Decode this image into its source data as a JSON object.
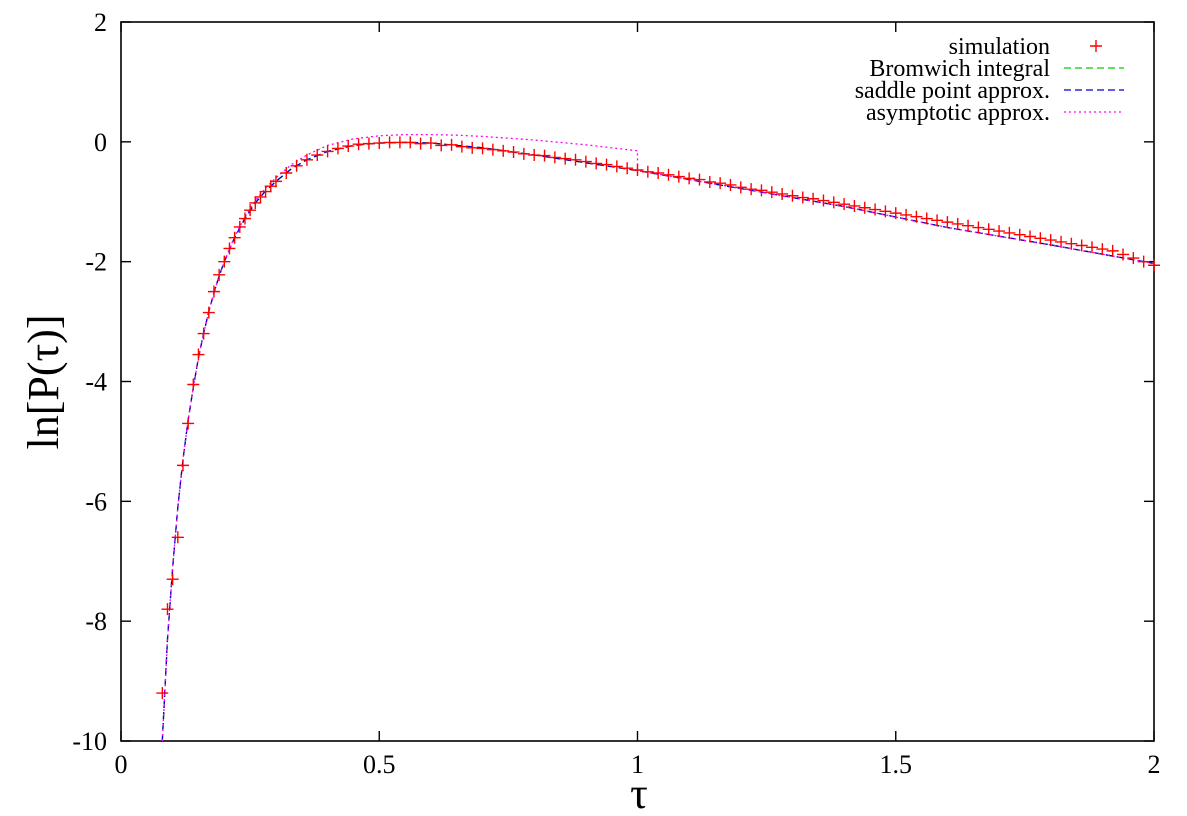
{
  "chart_data": {
    "type": "line",
    "title": "",
    "xlabel": "τ",
    "ylabel": "ln[P(τ)]",
    "xlim": [
      0,
      2
    ],
    "ylim": [
      -10,
      2
    ],
    "xticks": [
      "0",
      "0.5",
      "1",
      "1.5",
      "2"
    ],
    "xtick_values": [
      0,
      0.5,
      1,
      1.5,
      2
    ],
    "yticks": [
      "2",
      "0",
      "-2",
      "-4",
      "-6",
      "-8",
      "-10"
    ],
    "ytick_values": [
      2,
      0,
      -2,
      -4,
      -6,
      -8,
      -10
    ],
    "grid": false,
    "legend_position": "top-right",
    "series": [
      {
        "name": "simulation",
        "style": "markers-plus",
        "color": "#ff0000",
        "x": [
          0.08,
          0.09,
          0.1,
          0.11,
          0.12,
          0.13,
          0.14,
          0.15,
          0.16,
          0.17,
          0.18,
          0.19,
          0.2,
          0.21,
          0.22,
          0.23,
          0.24,
          0.25,
          0.26,
          0.27,
          0.28,
          0.29,
          0.3,
          0.32,
          0.34,
          0.36,
          0.38,
          0.4,
          0.42,
          0.44,
          0.46,
          0.48,
          0.5,
          0.52,
          0.54,
          0.56,
          0.58,
          0.6,
          0.62,
          0.64,
          0.66,
          0.68,
          0.7,
          0.72,
          0.74,
          0.76,
          0.78,
          0.8,
          0.82,
          0.84,
          0.86,
          0.88,
          0.9,
          0.92,
          0.94,
          0.96,
          0.98,
          1.0,
          1.02,
          1.04,
          1.06,
          1.08,
          1.1,
          1.12,
          1.14,
          1.16,
          1.18,
          1.2,
          1.22,
          1.24,
          1.26,
          1.28,
          1.3,
          1.32,
          1.34,
          1.36,
          1.38,
          1.4,
          1.42,
          1.44,
          1.46,
          1.48,
          1.5,
          1.52,
          1.54,
          1.56,
          1.58,
          1.6,
          1.62,
          1.64,
          1.66,
          1.68,
          1.7,
          1.72,
          1.74,
          1.76,
          1.78,
          1.8,
          1.82,
          1.84,
          1.86,
          1.88,
          1.9,
          1.92,
          1.94,
          1.96,
          1.98,
          2.0
        ],
        "y": [
          -9.2,
          -7.8,
          -7.3,
          -6.6,
          -5.4,
          -4.7,
          -4.05,
          -3.55,
          -3.2,
          -2.85,
          -2.5,
          -2.22,
          -2.0,
          -1.78,
          -1.6,
          -1.42,
          -1.28,
          -1.14,
          -1.02,
          -0.92,
          -0.83,
          -0.74,
          -0.66,
          -0.52,
          -0.4,
          -0.3,
          -0.22,
          -0.16,
          -0.11,
          -0.07,
          -0.04,
          -0.03,
          -0.02,
          -0.01,
          -0.01,
          -0.01,
          -0.03,
          -0.02,
          -0.06,
          -0.05,
          -0.08,
          -0.1,
          -0.11,
          -0.13,
          -0.15,
          -0.17,
          -0.2,
          -0.22,
          -0.23,
          -0.26,
          -0.28,
          -0.3,
          -0.33,
          -0.36,
          -0.38,
          -0.41,
          -0.44,
          -0.47,
          -0.5,
          -0.52,
          -0.55,
          -0.58,
          -0.61,
          -0.63,
          -0.67,
          -0.69,
          -0.72,
          -0.76,
          -0.79,
          -0.81,
          -0.84,
          -0.87,
          -0.9,
          -0.93,
          -0.95,
          -0.98,
          -1.01,
          -1.04,
          -1.07,
          -1.1,
          -1.13,
          -1.16,
          -1.19,
          -1.22,
          -1.25,
          -1.28,
          -1.31,
          -1.34,
          -1.37,
          -1.4,
          -1.43,
          -1.46,
          -1.49,
          -1.52,
          -1.55,
          -1.58,
          -1.61,
          -1.64,
          -1.67,
          -1.7,
          -1.73,
          -1.76,
          -1.79,
          -1.82,
          -1.88,
          -1.94,
          -2.0,
          -2.06
        ]
      },
      {
        "name": "Bromwich integral",
        "style": "dashed",
        "color": "#00cc00",
        "x": [
          0.08,
          0.09,
          0.1,
          0.11,
          0.12,
          0.13,
          0.14,
          0.15,
          0.16,
          0.17,
          0.18,
          0.19,
          0.2,
          0.22,
          0.24,
          0.26,
          0.28,
          0.3,
          0.33,
          0.36,
          0.4,
          0.45,
          0.5,
          0.55,
          0.6,
          0.7,
          0.8,
          0.9,
          1.0,
          1.2,
          1.4,
          1.6,
          1.8,
          2.0
        ],
        "y": [
          -10.0,
          -8.3,
          -7.1,
          -6.1,
          -5.3,
          -4.65,
          -4.1,
          -3.6,
          -3.2,
          -2.83,
          -2.52,
          -2.24,
          -2.0,
          -1.6,
          -1.28,
          -1.02,
          -0.82,
          -0.66,
          -0.45,
          -0.3,
          -0.16,
          -0.06,
          -0.02,
          -0.01,
          -0.02,
          -0.1,
          -0.22,
          -0.35,
          -0.48,
          -0.78,
          -1.08,
          -1.43,
          -1.72,
          -2.03
        ]
      },
      {
        "name": "saddle point approx.",
        "style": "dashed",
        "color": "#0000cc",
        "x": [
          0.08,
          0.09,
          0.1,
          0.11,
          0.12,
          0.13,
          0.14,
          0.15,
          0.16,
          0.17,
          0.18,
          0.19,
          0.2,
          0.22,
          0.24,
          0.26,
          0.28,
          0.3,
          0.33,
          0.36,
          0.4,
          0.45,
          0.5,
          0.55,
          0.6,
          0.7,
          0.8,
          0.9,
          1.0,
          1.2,
          1.4,
          1.6,
          1.8,
          2.0
        ],
        "y": [
          -10.0,
          -8.3,
          -7.1,
          -6.1,
          -5.3,
          -4.65,
          -4.1,
          -3.6,
          -3.2,
          -2.83,
          -2.52,
          -2.24,
          -2.0,
          -1.6,
          -1.28,
          -1.02,
          -0.82,
          -0.66,
          -0.45,
          -0.3,
          -0.16,
          -0.06,
          -0.02,
          -0.01,
          -0.02,
          -0.1,
          -0.22,
          -0.35,
          -0.48,
          -0.78,
          -1.08,
          -1.43,
          -1.72,
          -2.03
        ]
      },
      {
        "name": "asymptotic approx.",
        "style": "dotted",
        "color": "#ff00ff",
        "x": [
          0.08,
          0.09,
          0.1,
          0.11,
          0.12,
          0.13,
          0.14,
          0.15,
          0.16,
          0.17,
          0.18,
          0.19,
          0.2,
          0.22,
          0.24,
          0.26,
          0.28,
          0.3,
          0.33,
          0.36,
          0.4,
          0.45,
          0.5,
          0.55,
          0.6,
          0.65,
          0.7,
          0.8,
          0.9,
          1.0,
          1.0,
          1.2,
          1.4,
          1.6,
          1.8,
          2.0
        ],
        "y": [
          -10.0,
          -8.3,
          -7.1,
          -6.1,
          -5.3,
          -4.65,
          -4.1,
          -3.6,
          -3.2,
          -2.83,
          -2.52,
          -2.24,
          -2.0,
          -1.58,
          -1.25,
          -0.98,
          -0.77,
          -0.6,
          -0.38,
          -0.22,
          -0.06,
          0.05,
          0.1,
          0.12,
          0.12,
          0.11,
          0.09,
          0.03,
          -0.05,
          -0.15,
          -0.48,
          -0.78,
          -1.08,
          -1.43,
          -1.72,
          -2.03
        ]
      }
    ]
  }
}
